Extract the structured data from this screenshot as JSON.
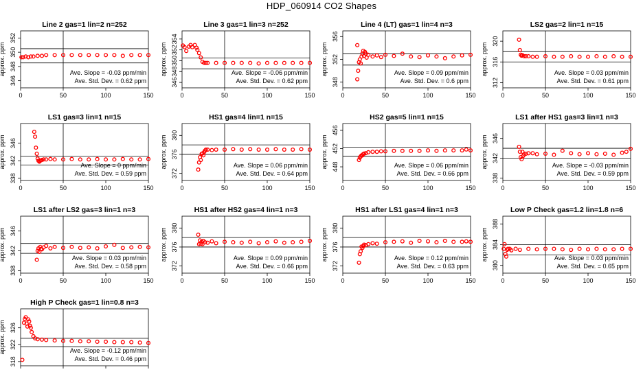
{
  "page": {
    "title": "HDP_060914  CO2 Shapes"
  },
  "chart_data": [
    {
      "type": "scatter",
      "title": "Line 2 gas=1 lin=2 n=252",
      "ylabel": "approx. ppm",
      "xlim": [
        0,
        150
      ],
      "xticks": [
        0,
        50,
        100,
        150
      ],
      "ylim": [
        345,
        353
      ],
      "yticks": [
        346,
        348,
        350,
        352
      ],
      "hlines": [
        350.5,
        348.5
      ],
      "vline": 50,
      "slope_text": "Ave. Slope = -0.03 ppm/min",
      "std_text": "Ave. Std. Dev. = 0.62 ppm",
      "series": [
        {
          "x": [
            1,
            3,
            6,
            9,
            12,
            15,
            20,
            25,
            30,
            40,
            50,
            60,
            70,
            80,
            90,
            100,
            110,
            120,
            130,
            140,
            150
          ],
          "y": [
            349.3,
            349.3,
            349.4,
            349.3,
            349.4,
            349.4,
            349.5,
            349.5,
            349.6,
            349.6,
            349.6,
            349.6,
            349.6,
            349.6,
            349.6,
            349.6,
            349.6,
            349.5,
            349.6,
            349.6,
            349.6
          ]
        }
      ]
    },
    {
      "type": "scatter",
      "title": "Line 3 gas=1 lin=3 n=252",
      "ylabel": "approx. ppm",
      "xlim": [
        0,
        150
      ],
      "xticks": [
        0,
        50,
        100,
        150
      ],
      "ylim": [
        345,
        355.5
      ],
      "yticks": [
        346,
        348,
        350,
        352,
        354
      ],
      "hlines": [
        350.5,
        348.5
      ],
      "vline": 50,
      "slope_text": "Ave. Slope = -0.06 ppm/min",
      "std_text": "Ave. Std. Dev. = 0.62 ppm",
      "series": [
        {
          "x": [
            1,
            3,
            5,
            8,
            10,
            12,
            15,
            17,
            18,
            20,
            22,
            24,
            26,
            28,
            30,
            40,
            50,
            60,
            70,
            80,
            90,
            100,
            110,
            120,
            130,
            140,
            150
          ],
          "y": [
            352.8,
            352.5,
            351.8,
            352.6,
            352.9,
            352.5,
            352.9,
            352.4,
            352.0,
            351.4,
            350.6,
            349.8,
            349.6,
            349.6,
            349.6,
            349.6,
            349.6,
            349.6,
            349.6,
            349.6,
            349.5,
            349.6,
            349.6,
            349.6,
            349.6,
            349.6,
            349.6
          ]
        }
      ]
    },
    {
      "type": "scatter",
      "title": "Line 4 (LT) gas=1 lin=4 n=3",
      "ylabel": "approx. ppm",
      "xlim": [
        0,
        150
      ],
      "xticks": [
        0,
        50,
        100,
        150
      ],
      "ylim": [
        347,
        357
      ],
      "yticks": [
        348,
        352,
        356
      ],
      "hlines": [
        353,
        351
      ],
      "vline": 50,
      "slope_text": "Ave. Slope = 0.09 ppm/min",
      "std_text": "Ave. Std. Dev. = 0.6 ppm",
      "series": [
        {
          "x": [
            17,
            17,
            18,
            19,
            20,
            21,
            22,
            23,
            24,
            25,
            26,
            27,
            28,
            30,
            35,
            40,
            45,
            50,
            60,
            70,
            80,
            90,
            100,
            110,
            120,
            130,
            140,
            150
          ],
          "y": [
            354.5,
            348.5,
            350,
            351.5,
            352,
            351.3,
            352.5,
            353,
            353.5,
            352.6,
            353.3,
            353,
            352.3,
            352.8,
            352.5,
            352.7,
            352.4,
            352.8,
            352.6,
            353,
            352.5,
            352.4,
            352.7,
            352.5,
            352.2,
            352.5,
            352.7,
            352.8
          ]
        }
      ]
    },
    {
      "type": "scatter",
      "title": "LS2 gas=2 lin=1 n=15",
      "ylabel": "approx. ppm",
      "xlim": [
        0,
        150
      ],
      "xticks": [
        0,
        50,
        100,
        150
      ],
      "ylim": [
        311,
        322
      ],
      "yticks": [
        312,
        316,
        320
      ],
      "hlines": [
        318,
        316
      ],
      "vline": 50,
      "slope_text": "Ave. Slope = 0.03 ppm/min",
      "std_text": "Ave. Std. Dev. = 0.61 ppm",
      "series": [
        {
          "x": [
            19,
            20,
            21,
            22,
            23,
            25,
            27,
            30,
            35,
            40,
            50,
            60,
            70,
            80,
            90,
            100,
            110,
            120,
            130,
            140,
            150
          ],
          "y": [
            320.3,
            318.3,
            317.4,
            317.2,
            317.3,
            317.1,
            317.1,
            317.1,
            317,
            317,
            317.1,
            317,
            317,
            317.1,
            317,
            317,
            317.1,
            317,
            317.1,
            317,
            317
          ]
        }
      ]
    },
    {
      "type": "scatter",
      "title": "LS1 gas=3 lin=1 n=15",
      "ylabel": "approx. ppm",
      "xlim": [
        0,
        150
      ],
      "xticks": [
        0,
        50,
        100,
        150
      ],
      "ylim": [
        337.5,
        350.5
      ],
      "yticks": [
        338,
        342,
        346
      ],
      "hlines": [
        343,
        341
      ],
      "vline": 50,
      "slope_text": "Ave. Slope = 0 ppm/min",
      "std_text": "Ave. Std. Dev. = 0.59 ppm",
      "series": [
        {
          "x": [
            16,
            17,
            18,
            19,
            20,
            21,
            22,
            23,
            24,
            25,
            27,
            30,
            35,
            40,
            50,
            60,
            70,
            80,
            90,
            100,
            110,
            120,
            130,
            140,
            150
          ],
          "y": [
            348.6,
            347.5,
            345,
            343.6,
            342.5,
            342,
            341.8,
            342,
            342.1,
            342.2,
            342.3,
            342.3,
            342.4,
            342.3,
            342.3,
            342.4,
            342.3,
            342.3,
            342.4,
            342.3,
            342.3,
            342.4,
            342.3,
            342.3,
            342.4
          ]
        }
      ]
    },
    {
      "type": "scatter",
      "title": "HS1 gas=4 lin=1 n=15",
      "ylabel": "approx. ppm",
      "xlim": [
        0,
        150
      ],
      "xticks": [
        0,
        50,
        100,
        150
      ],
      "ylim": [
        370.5,
        382.5
      ],
      "yticks": [
        372,
        376,
        380
      ],
      "hlines": [
        378,
        376
      ],
      "vline": 50,
      "slope_text": "Ave. Slope = 0.06 ppm/min",
      "std_text": "Ave. Std. Dev. = 0.64 ppm",
      "series": [
        {
          "x": [
            19,
            20,
            21,
            22,
            23,
            24,
            25,
            26,
            27,
            28,
            30,
            35,
            40,
            50,
            60,
            70,
            80,
            90,
            100,
            110,
            120,
            130,
            140,
            150
          ],
          "y": [
            372.8,
            374.3,
            375.4,
            374.8,
            376.1,
            376.2,
            375.8,
            376.5,
            376.8,
            377,
            377,
            376.9,
            377,
            377,
            377.1,
            377,
            377.1,
            377,
            377,
            377.1,
            377,
            377,
            377.1,
            377
          ]
        }
      ]
    },
    {
      "type": "scatter",
      "title": "HS2 gas=5 lin=1 n=15",
      "ylabel": "approx. ppm",
      "xlim": [
        0,
        150
      ],
      "xticks": [
        0,
        50,
        100,
        150
      ],
      "ylim": [
        445,
        457.5
      ],
      "yticks": [
        448,
        452,
        456
      ],
      "hlines": [
        452.3,
        450.3
      ],
      "vline": 50,
      "slope_text": "Ave. Slope = 0.06 ppm/min",
      "std_text": "Ave. Std. Dev. = 0.66 ppm",
      "series": [
        {
          "x": [
            19,
            20,
            21,
            22,
            23,
            24,
            25,
            27,
            30,
            35,
            40,
            45,
            50,
            60,
            70,
            80,
            90,
            100,
            110,
            120,
            130,
            140,
            145,
            150
          ],
          "y": [
            449.5,
            450,
            450.3,
            450.5,
            450.5,
            450.8,
            450.9,
            451,
            451.2,
            451.3,
            451.3,
            451.4,
            451.4,
            451.5,
            451.5,
            451.5,
            451.5,
            451.6,
            451.5,
            451.6,
            451.6,
            451.6,
            451.8,
            451.6
          ]
        }
      ]
    },
    {
      "type": "scatter",
      "title": "LS1 after HS1 gas=3 lin=1 n=3",
      "ylabel": "approx. ppm",
      "xlim": [
        0,
        150
      ],
      "xticks": [
        0,
        50,
        100,
        150
      ],
      "ylim": [
        337.5,
        349
      ],
      "yticks": [
        338,
        342,
        346
      ],
      "hlines": [
        344,
        342
      ],
      "vline": 50,
      "slope_text": "Ave. Slope = -0.03 ppm/min",
      "std_text": "Ave. Std. Dev. = 0.59 ppm",
      "series": [
        {
          "x": [
            19,
            20,
            21,
            22,
            23,
            24,
            25,
            27,
            30,
            35,
            40,
            50,
            60,
            70,
            80,
            90,
            100,
            110,
            120,
            130,
            140,
            145,
            150
          ],
          "y": [
            344.3,
            343.3,
            342.2,
            341.8,
            343.3,
            342.5,
            342.8,
            342.9,
            343,
            343,
            342.8,
            342.9,
            342.7,
            343.5,
            343,
            342.8,
            343,
            342.8,
            342.9,
            342.7,
            343.1,
            343.3,
            343.9
          ]
        }
      ]
    },
    {
      "type": "scatter",
      "title": "LS1 after LS2 gas=3 lin=1 n=3",
      "ylabel": "approx. ppm",
      "xlim": [
        0,
        150
      ],
      "xticks": [
        0,
        50,
        100,
        150
      ],
      "ylim": [
        337.5,
        349
      ],
      "yticks": [
        338,
        342,
        346
      ],
      "hlines": [
        343.5,
        341.5
      ],
      "vline": 50,
      "slope_text": "Ave. Slope = 0.03 ppm/min",
      "std_text": "Ave. Std. Dev. = 0.58 ppm",
      "series": [
        {
          "x": [
            19,
            20,
            21,
            22,
            23,
            24,
            25,
            27,
            30,
            35,
            40,
            50,
            60,
            70,
            80,
            90,
            100,
            110,
            120,
            130,
            140,
            150
          ],
          "y": [
            340.2,
            342,
            342.5,
            341.8,
            342.8,
            342.4,
            342.3,
            342.7,
            343,
            342.5,
            342.8,
            342.6,
            342.8,
            342.6,
            342.7,
            342.5,
            342.9,
            343.2,
            342.6,
            342.7,
            342.8,
            342.7
          ]
        }
      ]
    },
    {
      "type": "scatter",
      "title": "HS1 after HS2 gas=4 lin=1 n=3",
      "ylabel": "approx. ppm",
      "xlim": [
        0,
        150
      ],
      "xticks": [
        0,
        50,
        100,
        150
      ],
      "ylim": [
        370.5,
        382.5
      ],
      "yticks": [
        372,
        376,
        380
      ],
      "hlines": [
        378,
        376
      ],
      "vline": 50,
      "slope_text": "Ave. Slope = 0.09 ppm/min",
      "std_text": "Ave. Std. Dev. = 0.66 ppm",
      "series": [
        {
          "x": [
            19,
            20,
            21,
            22,
            23,
            24,
            25,
            27,
            30,
            35,
            40,
            50,
            60,
            70,
            80,
            90,
            100,
            110,
            120,
            130,
            140,
            150
          ],
          "y": [
            378.6,
            376.6,
            377.4,
            376.7,
            377.1,
            376.6,
            377.3,
            377,
            376.9,
            377.2,
            376.8,
            377.1,
            377,
            376.9,
            377.1,
            376.8,
            377,
            377.2,
            376.9,
            377,
            377.1,
            377.3
          ]
        }
      ]
    },
    {
      "type": "scatter",
      "title": "HS1 after LS1 gas=4 lin=1 n=3",
      "ylabel": "approx. ppm",
      "xlim": [
        0,
        150
      ],
      "xticks": [
        0,
        50,
        100,
        150
      ],
      "ylim": [
        370.5,
        382.5
      ],
      "yticks": [
        372,
        376,
        380
      ],
      "hlines": [
        378,
        376
      ],
      "vline": 50,
      "slope_text": "Ave. Slope = 0.12 ppm/min",
      "std_text": "Ave. Std. Dev. = 0.63 ppm",
      "series": [
        {
          "x": [
            19,
            20,
            21,
            22,
            23,
            24,
            25,
            27,
            30,
            35,
            40,
            50,
            60,
            70,
            80,
            90,
            100,
            110,
            120,
            130,
            140,
            145,
            150
          ],
          "y": [
            372.7,
            374.5,
            375.1,
            376.1,
            375.8,
            376.2,
            376.5,
            376.4,
            376.6,
            376.8,
            376.7,
            377,
            377.1,
            377.2,
            376.9,
            377.3,
            377.2,
            377,
            377.3,
            377.1,
            377.1,
            377.2,
            377.1
          ]
        }
      ]
    },
    {
      "type": "scatter",
      "title": "Low P Check gas=1.2 lin=1.8 n=6",
      "ylabel": "approx. ppm",
      "xlim": [
        0,
        150
      ],
      "xticks": [
        0,
        50,
        100,
        150
      ],
      "ylim": [
        378.5,
        389.5
      ],
      "yticks": [
        380,
        384,
        388
      ],
      "hlines": [
        384,
        382
      ],
      "vline": 50,
      "slope_text": "Ave. Slope = 0.03 ppm/min",
      "std_text": "Ave. Std. Dev. = 0.65 ppm",
      "series": [
        {
          "x": [
            1,
            2,
            3,
            4,
            5,
            6,
            8,
            10,
            15,
            20,
            30,
            40,
            50,
            60,
            70,
            80,
            90,
            100,
            110,
            120,
            130,
            140,
            150
          ],
          "y": [
            383.2,
            384.1,
            382.2,
            381.7,
            383,
            383.2,
            383.2,
            382.9,
            383.2,
            383,
            383.2,
            383.1,
            383.2,
            383.2,
            383.1,
            383,
            383.2,
            383.1,
            383.2,
            383.1,
            383.1,
            383.2,
            383.2
          ]
        }
      ]
    },
    {
      "type": "scatter",
      "title": "High P Check gas=1 lin=0.8 n=3",
      "ylabel": "approx. ppm",
      "xlim": [
        0,
        150
      ],
      "xticks": [
        0,
        50,
        100,
        150
      ],
      "ylim": [
        317,
        330.5
      ],
      "yticks": [
        318,
        322,
        326
      ],
      "hlines": [
        323.5,
        321.5
      ],
      "vline": 50,
      "slope_text": "Ave. Slope = -0.12 ppm/min",
      "std_text": "Ave. Std. Dev. = 0.46 ppm",
      "series": [
        {
          "x": [
            2,
            4,
            5,
            6,
            7,
            8,
            9,
            10,
            11,
            12,
            13,
            15,
            17,
            20,
            25,
            30,
            40,
            50,
            60,
            70,
            80,
            90,
            100,
            110,
            120,
            130,
            140,
            150
          ],
          "y": [
            318.4,
            327.2,
            328.1,
            328.5,
            327,
            326.3,
            328,
            327.5,
            326.5,
            326,
            325,
            324,
            323.5,
            323.3,
            323.2,
            323.1,
            323,
            322.9,
            322.9,
            322.8,
            322.8,
            322.7,
            322.7,
            322.6,
            322.6,
            322.6,
            322.5,
            322.4
          ]
        }
      ]
    }
  ],
  "colors": {
    "points": "#ff0000",
    "axes": "#000000"
  }
}
